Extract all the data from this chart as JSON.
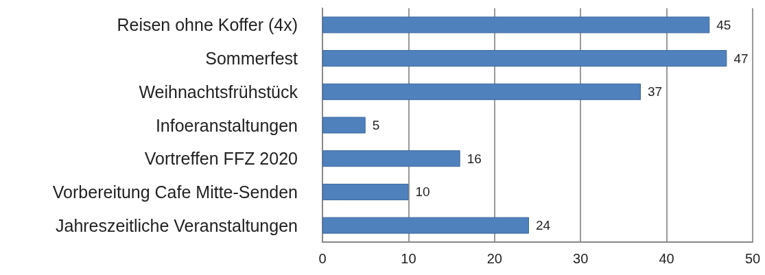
{
  "chart_data": {
    "type": "bar",
    "orientation": "horizontal",
    "categories": [
      "Reisen ohne Koffer (4x)",
      "Sommerfest",
      "Weihnachtsfrühstück",
      "Infoeranstaltungen",
      "Vortreffen FFZ 2020",
      "Vorbereitung Cafe Mitte-Senden",
      "Jahreszeitliche Veranstaltungen"
    ],
    "values": [
      45,
      47,
      37,
      5,
      16,
      10,
      24
    ],
    "color": "#4f81bd",
    "xlim": [
      0,
      50
    ],
    "xticks": [
      0,
      10,
      20,
      30,
      40,
      50
    ],
    "grid": "x",
    "data_labels": true
  }
}
